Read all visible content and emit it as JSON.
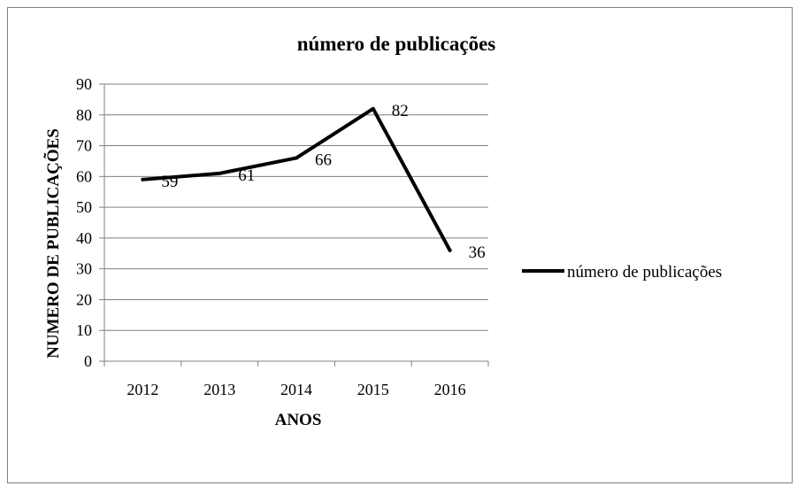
{
  "chart_data": {
    "type": "line",
    "title": "número de publicações",
    "xlabel": "ANOS",
    "ylabel": "NUMERO DE PUBLICAÇÕES",
    "categories": [
      "2012",
      "2013",
      "2014",
      "2015",
      "2016"
    ],
    "series": [
      {
        "name": "número de publicações",
        "values": [
          59,
          61,
          66,
          82,
          36
        ],
        "color": "#000000"
      }
    ],
    "ylim": [
      0,
      90
    ],
    "yticks": [
      0,
      10,
      20,
      30,
      40,
      50,
      60,
      70,
      80,
      90
    ],
    "grid": true,
    "legend_position": "right"
  }
}
